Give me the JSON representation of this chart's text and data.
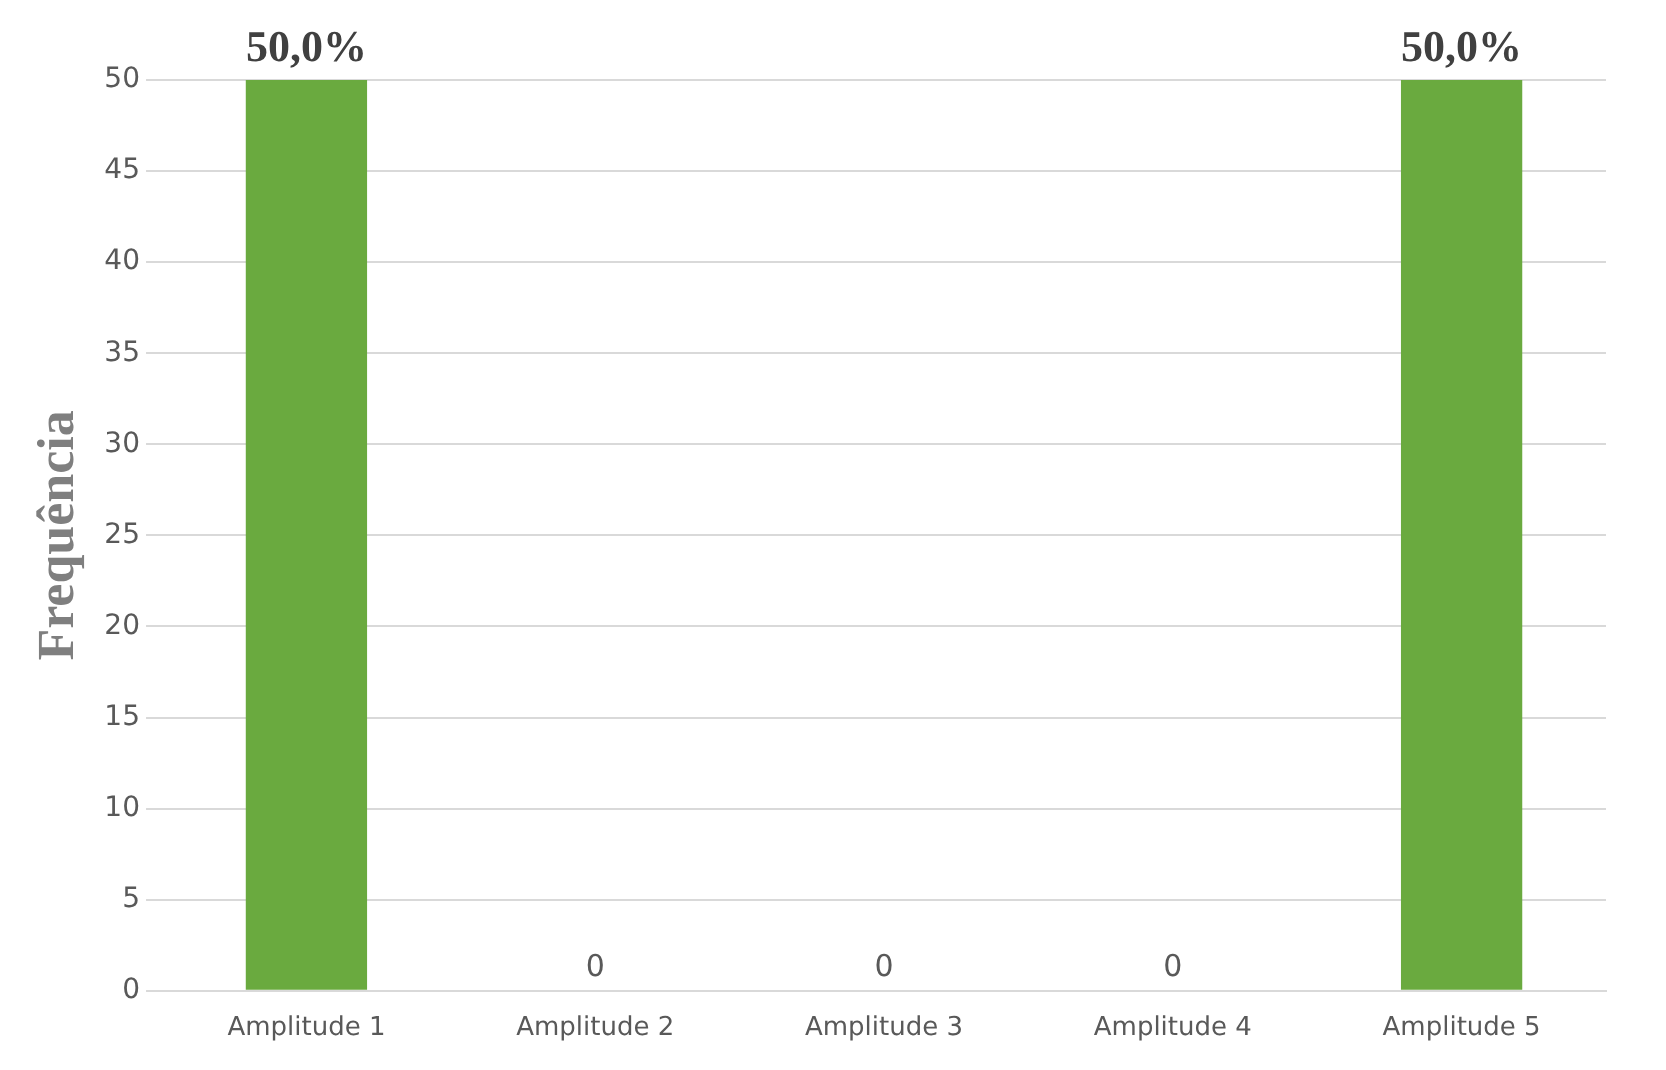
{
  "chart_data": {
    "type": "bar",
    "ylabel": "Frequência",
    "categories": [
      "Amplitude 1",
      "Amplitude 2",
      "Amplitude 3",
      "Amplitude 4",
      "Amplitude 5"
    ],
    "values": [
      50,
      0,
      0,
      0,
      50
    ],
    "color": "#6aaa3f",
    "value_labels": [
      "50,0%",
      "0",
      "0",
      "0",
      "50,0%"
    ],
    "ylim": [
      0,
      50
    ],
    "yticks": [
      0,
      5,
      10,
      15,
      20,
      25,
      30,
      35,
      40,
      45,
      50
    ],
    "grid": "y",
    "legend": false
  }
}
